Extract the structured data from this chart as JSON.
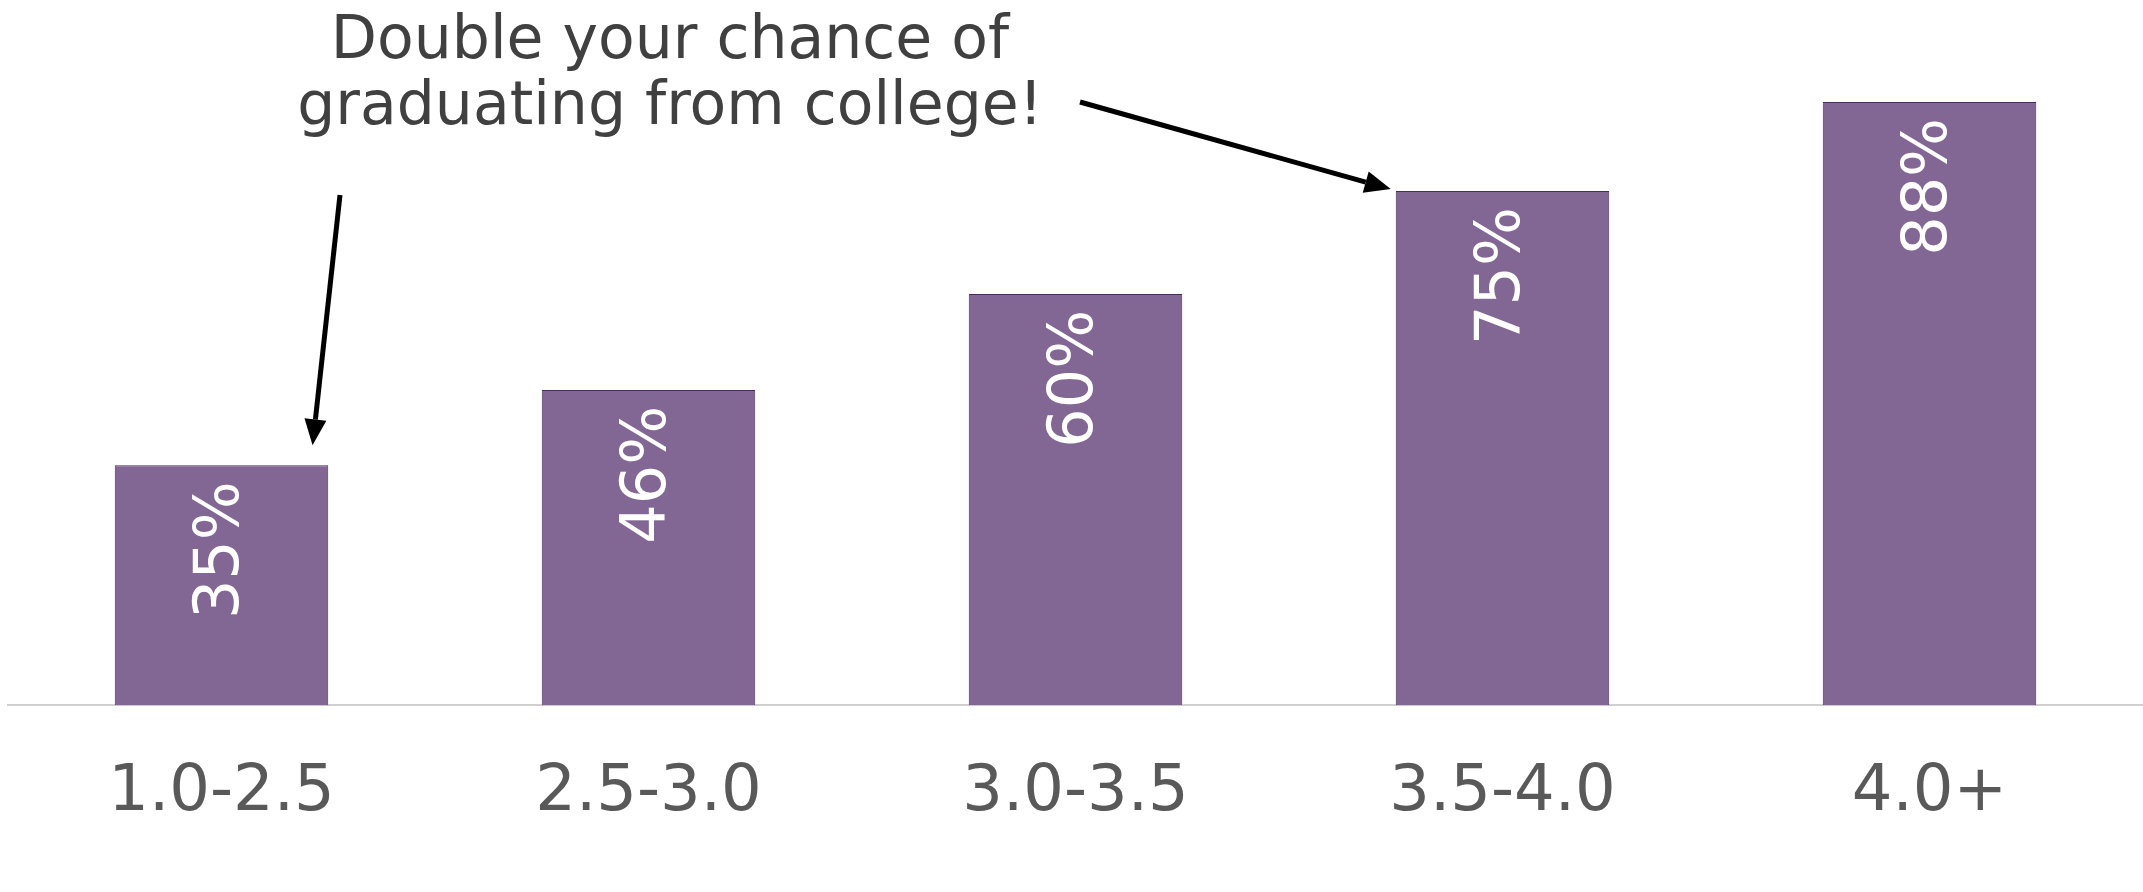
{
  "chart_data": {
    "type": "bar",
    "categories": [
      "1.0-2.5",
      "2.5-3.0",
      "3.0-3.5",
      "3.5-4.0",
      "4.0+"
    ],
    "values": [
      35,
      46,
      60,
      75,
      88
    ],
    "value_labels": [
      "35%",
      "46%",
      "60%",
      "75%",
      "88%"
    ],
    "color": "#826693",
    "annotations": [
      "Double your chance of graduating from college!"
    ]
  }
}
